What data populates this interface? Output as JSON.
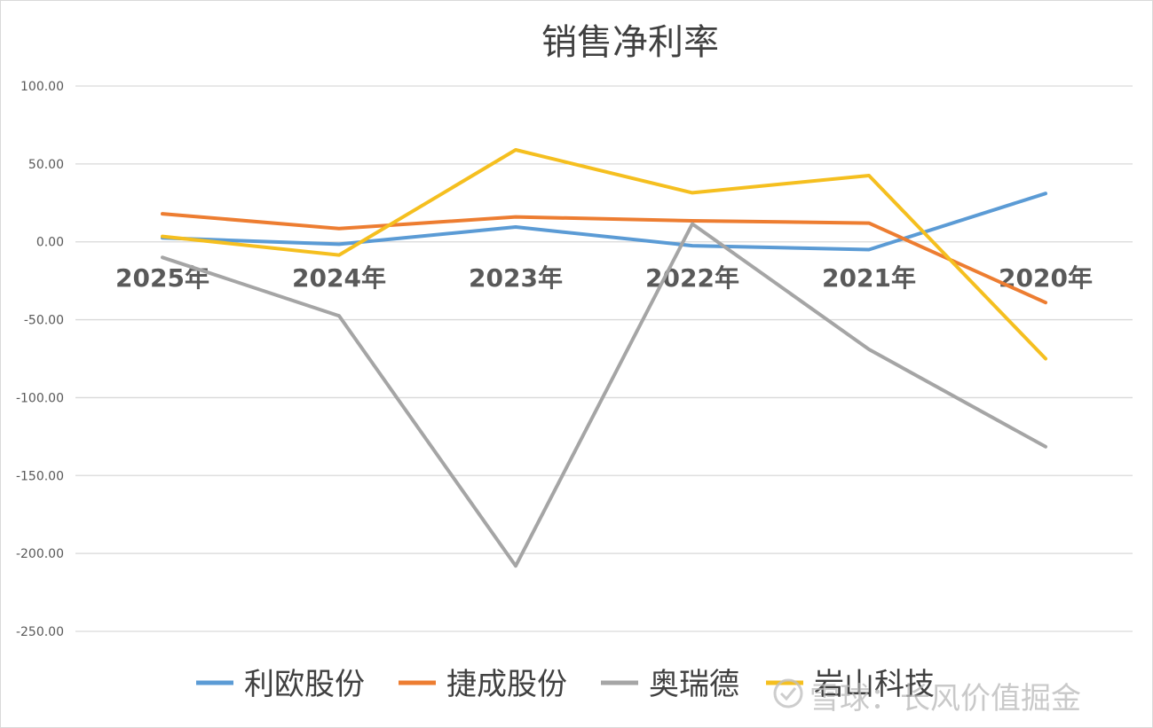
{
  "chart_data": {
    "type": "line",
    "title": "销售净利率",
    "categories": [
      "2025年",
      "2024年",
      "2023年",
      "2022年",
      "2021年",
      "2020年"
    ],
    "ylim": [
      -250,
      100
    ],
    "yticks": [
      "100.00",
      "50.00",
      "0.00",
      "-50.00",
      "-100.00",
      "-150.00",
      "-200.00",
      "-250.00"
    ],
    "ytick_values": [
      100,
      50,
      0,
      -50,
      -100,
      -150,
      -200,
      -250
    ],
    "grid": true,
    "legend_position": "bottom",
    "series": [
      {
        "name": "利欧股份",
        "color": "#5b9bd5",
        "values": [
          2.5,
          -1.5,
          9.5,
          -2.5,
          -5,
          31
        ]
      },
      {
        "name": "捷成股份",
        "color": "#ed7d31",
        "values": [
          18,
          8.5,
          16,
          13.5,
          12,
          -39
        ]
      },
      {
        "name": "奥瑞德",
        "color": "#a5a5a5",
        "values": [
          -10,
          -47.5,
          -208,
          11.5,
          -69,
          -131.5
        ]
      },
      {
        "name": "岩山科技",
        "color": "#f5bf1f",
        "values": [
          3.5,
          -8.5,
          59,
          31.5,
          42.5,
          -75
        ]
      }
    ]
  },
  "watermark": {
    "text": "雪球：长风价值掘金"
  }
}
